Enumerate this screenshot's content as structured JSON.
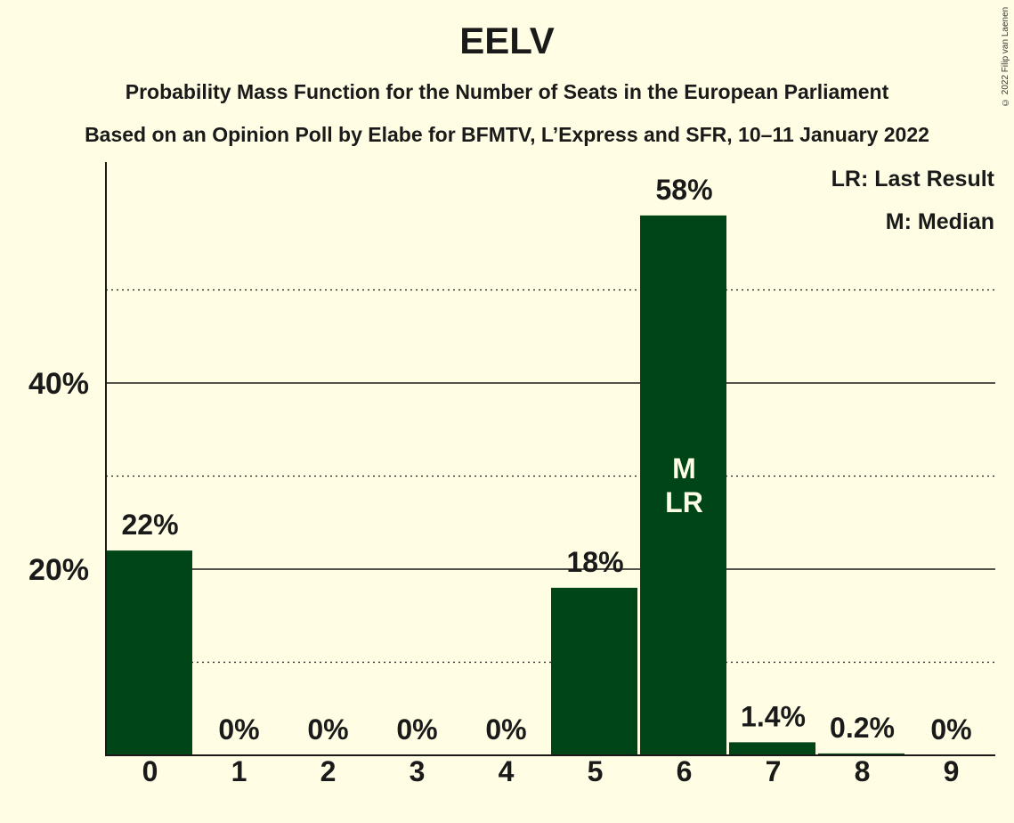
{
  "header": {
    "title": "EELV",
    "subtitle_1": "Probability Mass Function for the Number of Seats in the European Parliament",
    "subtitle_2": "Based on an Opinion Poll by Elabe for BFMTV, L’Express and SFR, 10–11 January 2022",
    "copyright": "© 2022 Filip van Laenen"
  },
  "legend": {
    "last_result": "LR: Last Result",
    "median": "M: Median"
  },
  "colors": {
    "background": "#FFFEE4",
    "bar": "#004517",
    "text": "#1a1a1a"
  },
  "chart_data": {
    "type": "bar",
    "categories": [
      "0",
      "1",
      "2",
      "3",
      "4",
      "5",
      "6",
      "7",
      "8",
      "9"
    ],
    "values": [
      22,
      0,
      0,
      0,
      0,
      18,
      58,
      1.4,
      0.2,
      0
    ],
    "value_labels": [
      "22%",
      "0%",
      "0%",
      "0%",
      "0%",
      "18%",
      "58%",
      "1.4%",
      "0.2%",
      "0%"
    ],
    "ytick_labels": [
      "20%",
      "40%"
    ],
    "ytick_values": [
      20,
      40
    ],
    "minor_gridlines": [
      10,
      30,
      50
    ],
    "ylim": [
      0,
      63
    ],
    "median_index": 6,
    "last_result_index": 6,
    "median_label": "M",
    "last_result_label": "LR"
  }
}
